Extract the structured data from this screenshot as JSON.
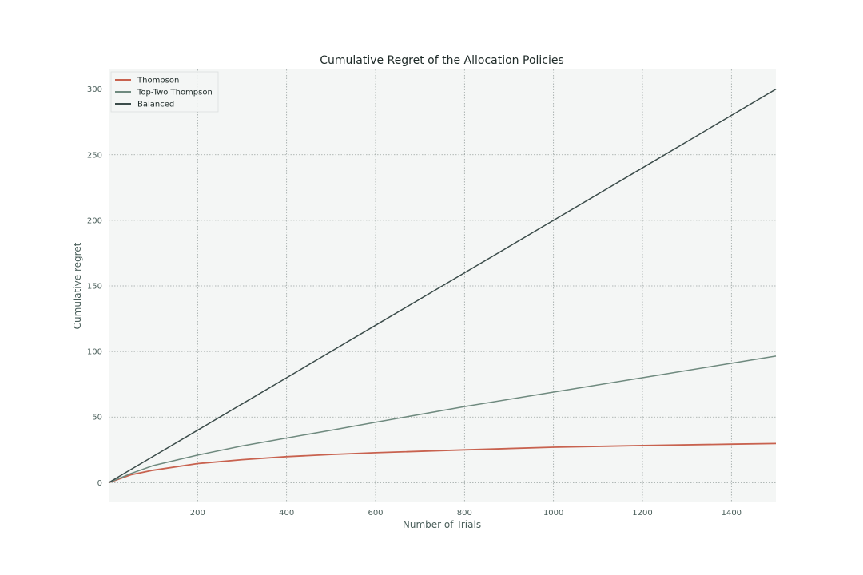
{
  "chart_data": {
    "type": "line",
    "title": "Cumulative Regret of the Allocation Policies",
    "xlabel": "Number of Trials",
    "ylabel": "Cumulative regret",
    "xlim": [
      0,
      1500
    ],
    "ylim": [
      -15,
      315
    ],
    "xticks": [
      200,
      400,
      600,
      800,
      1000,
      1200,
      1400
    ],
    "yticks": [
      0,
      50,
      100,
      150,
      200,
      250,
      300
    ],
    "grid": true,
    "legend_position": "top-left",
    "background": "#f4f6f5",
    "x": [
      0,
      50,
      100,
      200,
      300,
      400,
      500,
      600,
      800,
      1000,
      1200,
      1400,
      1500
    ],
    "series": [
      {
        "name": "Thompson",
        "color": "#c8624f",
        "values": [
          0,
          6,
          9.5,
          14.5,
          17.5,
          19.8,
          21.5,
          22.8,
          25,
          27,
          28.3,
          29.3,
          29.8
        ]
      },
      {
        "name": "Top-Two Thompson",
        "color": "#6f8a7f",
        "values": [
          0,
          7,
          13,
          21,
          28,
          34,
          40,
          46,
          58,
          69,
          80,
          91,
          96.5
        ]
      },
      {
        "name": "Balanced",
        "color": "#3b4c4a",
        "values": [
          0,
          10,
          20,
          40,
          60,
          80,
          100,
          120,
          160,
          200,
          240,
          280,
          300
        ]
      }
    ]
  }
}
